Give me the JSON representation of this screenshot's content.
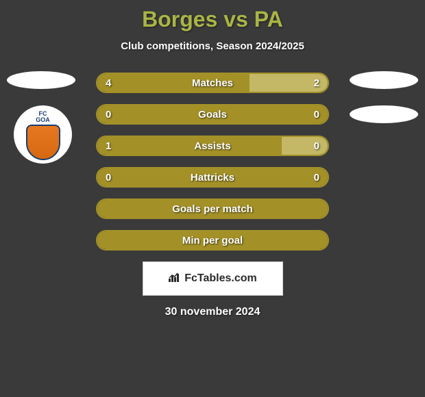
{
  "title": "Borges vs PA",
  "subtitle": "Club competitions, Season 2024/2025",
  "colors": {
    "background": "#3a3a3a",
    "title_color": "#a9b545",
    "text_color": "#ffffff",
    "bar_primary": "#a39128",
    "bar_secondary": "#c4b866",
    "border_color": "#a39128"
  },
  "stats": [
    {
      "label": "Matches",
      "left_value": "4",
      "right_value": "2",
      "left_pct": 66,
      "right_pct": 34
    },
    {
      "label": "Goals",
      "left_value": "0",
      "right_value": "0",
      "left_pct": 100,
      "right_pct": 0
    },
    {
      "label": "Assists",
      "left_value": "1",
      "right_value": "0",
      "left_pct": 80,
      "right_pct": 20
    },
    {
      "label": "Hattricks",
      "left_value": "0",
      "right_value": "0",
      "left_pct": 100,
      "right_pct": 0
    },
    {
      "label": "Goals per match",
      "left_value": "",
      "right_value": "",
      "left_pct": 100,
      "right_pct": 0
    },
    {
      "label": "Min per goal",
      "left_value": "",
      "right_value": "",
      "left_pct": 100,
      "right_pct": 0
    }
  ],
  "logo": {
    "text_top": "FC",
    "text_bottom": "GOA"
  },
  "footer": {
    "brand": "FcTables.com"
  },
  "date": "30 november 2024"
}
